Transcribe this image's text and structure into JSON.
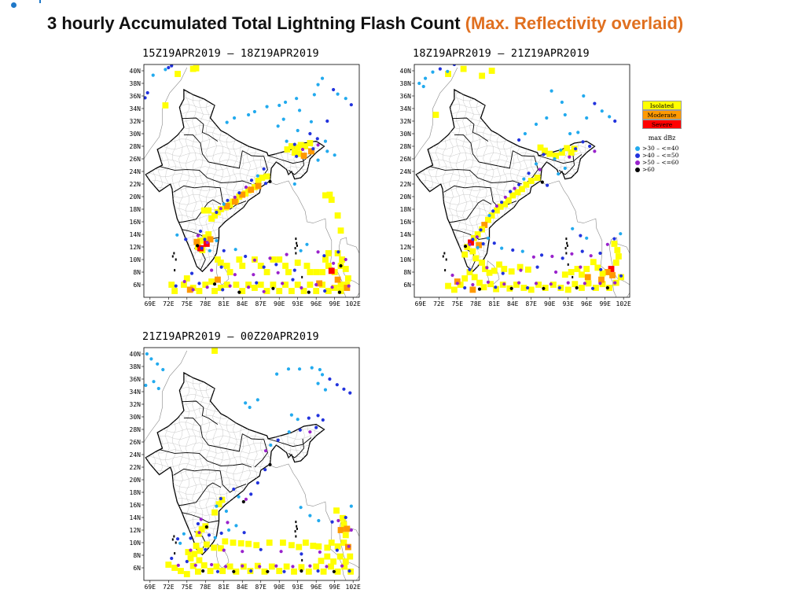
{
  "page": {
    "title_main": "3 hourly Accumulated Total Lightning Flash Count",
    "title_overlay": "(Max. Reflectivity overlaid)"
  },
  "panels": [
    {
      "id": "p1",
      "title": "15Z19APR2019 – 18Z19APR2019",
      "lat_labels": [
        "40N",
        "38N",
        "36N",
        "34N",
        "32N",
        "30N",
        "28N",
        "26N",
        "24N",
        "22N",
        "20N",
        "18N",
        "16N",
        "14N",
        "12N",
        "10N",
        "8N",
        "6N"
      ],
      "lon_labels": [
        "69E",
        "72E",
        "75E",
        "78E",
        "81E",
        "84E",
        "87E",
        "90E",
        "93E",
        "96E",
        "99E",
        "102E"
      ]
    },
    {
      "id": "p2",
      "title": "18Z19APR2019 – 21Z19APR2019",
      "lat_labels": [
        "40N",
        "38N",
        "36N",
        "34N",
        "32N",
        "30N",
        "28N",
        "26N",
        "24N",
        "22N",
        "20N",
        "18N",
        "16N",
        "14N",
        "12N",
        "10N",
        "8N",
        "6N"
      ],
      "lon_labels": [
        "69E",
        "72E",
        "75E",
        "78E",
        "81E",
        "84E",
        "87E",
        "90E",
        "93E",
        "96E",
        "99E",
        "102E"
      ]
    },
    {
      "id": "p3",
      "title": "21Z19APR2019 – 00Z20APR2019",
      "lat_labels": [
        "40N",
        "38N",
        "36N",
        "34N",
        "32N",
        "30N",
        "28N",
        "26N",
        "24N",
        "22N",
        "20N",
        "18N",
        "16N",
        "14N",
        "12N",
        "10N",
        "8N",
        "6N"
      ],
      "lon_labels": [
        "69E",
        "72E",
        "75E",
        "78E",
        "81E",
        "84E",
        "87E",
        "90E",
        "93E",
        "96E",
        "99E",
        "102E"
      ]
    }
  ],
  "legend": {
    "categories": [
      {
        "label": "Isolated",
        "color": "#ffff00"
      },
      {
        "label": "Moderate",
        "color": "#ff9900"
      },
      {
        "label": "Severe",
        "color": "#ff0000"
      }
    ],
    "reflectivity_title": "max dBz",
    "reflectivity_items": [
      {
        "label": ">30 – <=40",
        "color": "#22aaee"
      },
      {
        "label": ">40 – <=50",
        "color": "#2233dd"
      },
      {
        "label": ">50 – <=60",
        "color": "#9922cc"
      },
      {
        "label": ">60",
        "color": "#000000"
      }
    ]
  }
}
